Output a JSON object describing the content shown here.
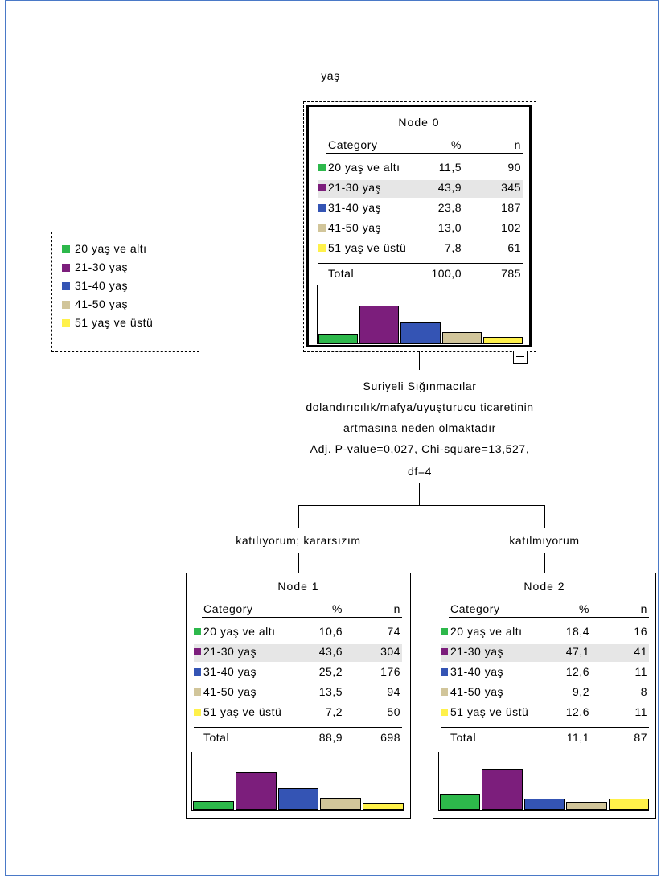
{
  "dependent_variable": "yaş",
  "colors": {
    "20 yaş ve altı": "#2db84b",
    "21-30 yaş": "#7c1e7c",
    "31-40 yaş": "#3454b4",
    "41-50 yaş": "#d1c59a",
    "51 yaş ve üstü": "#fff14a",
    "frame": "#4a79c7",
    "highlight_row": "#e6e6e6"
  },
  "legend": {
    "items": [
      "20 yaş ve altı",
      "21-30 yaş",
      "31-40 yaş",
      "41-50 yaş",
      "51 yaş ve üstü"
    ]
  },
  "table_headers": {
    "category": "Category",
    "percent": "%",
    "n": "n"
  },
  "nodes": [
    {
      "title": "Node 0",
      "rows": [
        {
          "category": "20 yaş ve altı",
          "percent": "11,5",
          "n": "90"
        },
        {
          "category": "21-30 yaş",
          "percent": "43,9",
          "n": "345"
        },
        {
          "category": "31-40 yaş",
          "percent": "23,8",
          "n": "187"
        },
        {
          "category": "41-50 yaş",
          "percent": "13,0",
          "n": "102"
        },
        {
          "category": "51 yaş ve üstü",
          "percent": "7,8",
          "n": "61"
        }
      ],
      "total": {
        "label": "Total",
        "percent": "100,0",
        "n": "785"
      },
      "bars": [
        11.5,
        43.9,
        23.8,
        13.0,
        7.8
      ]
    },
    {
      "title": "Node 1",
      "rows": [
        {
          "category": "20 yaş ve altı",
          "percent": "10,6",
          "n": "74"
        },
        {
          "category": "21-30 yaş",
          "percent": "43,6",
          "n": "304"
        },
        {
          "category": "31-40 yaş",
          "percent": "25,2",
          "n": "176"
        },
        {
          "category": "41-50 yaş",
          "percent": "13,5",
          "n": "94"
        },
        {
          "category": "51 yaş ve üstü",
          "percent": "7,2",
          "n": "50"
        }
      ],
      "total": {
        "label": "Total",
        "percent": "88,9",
        "n": "698"
      },
      "bars": [
        10.6,
        43.6,
        25.2,
        13.5,
        7.2
      ]
    },
    {
      "title": "Node 2",
      "rows": [
        {
          "category": "20 yaş ve altı",
          "percent": "18,4",
          "n": "16"
        },
        {
          "category": "21-30 yaş",
          "percent": "47,1",
          "n": "41"
        },
        {
          "category": "31-40 yaş",
          "percent": "12,6",
          "n": "11"
        },
        {
          "category": "41-50 yaş",
          "percent": "9,2",
          "n": "8"
        },
        {
          "category": "51 yaş ve üstü",
          "percent": "12,6",
          "n": "11"
        }
      ],
      "total": {
        "label": "Total",
        "percent": "11,1",
        "n": "87"
      },
      "bars": [
        18.4,
        47.1,
        12.6,
        9.2,
        12.6
      ]
    }
  ],
  "split": {
    "variable_lines": [
      "Suriyeli Sığınmacılar",
      "dolandırıcılık/mafya/uyuşturucu ticaretinin",
      "artmasına neden olmaktadır"
    ],
    "stats_lines": [
      "Adj. P-value=0,027, Chi-square=13,527,",
      "df=4"
    ],
    "branches": [
      "katılıyorum; kararsızım",
      "katılmıyorum"
    ]
  }
}
